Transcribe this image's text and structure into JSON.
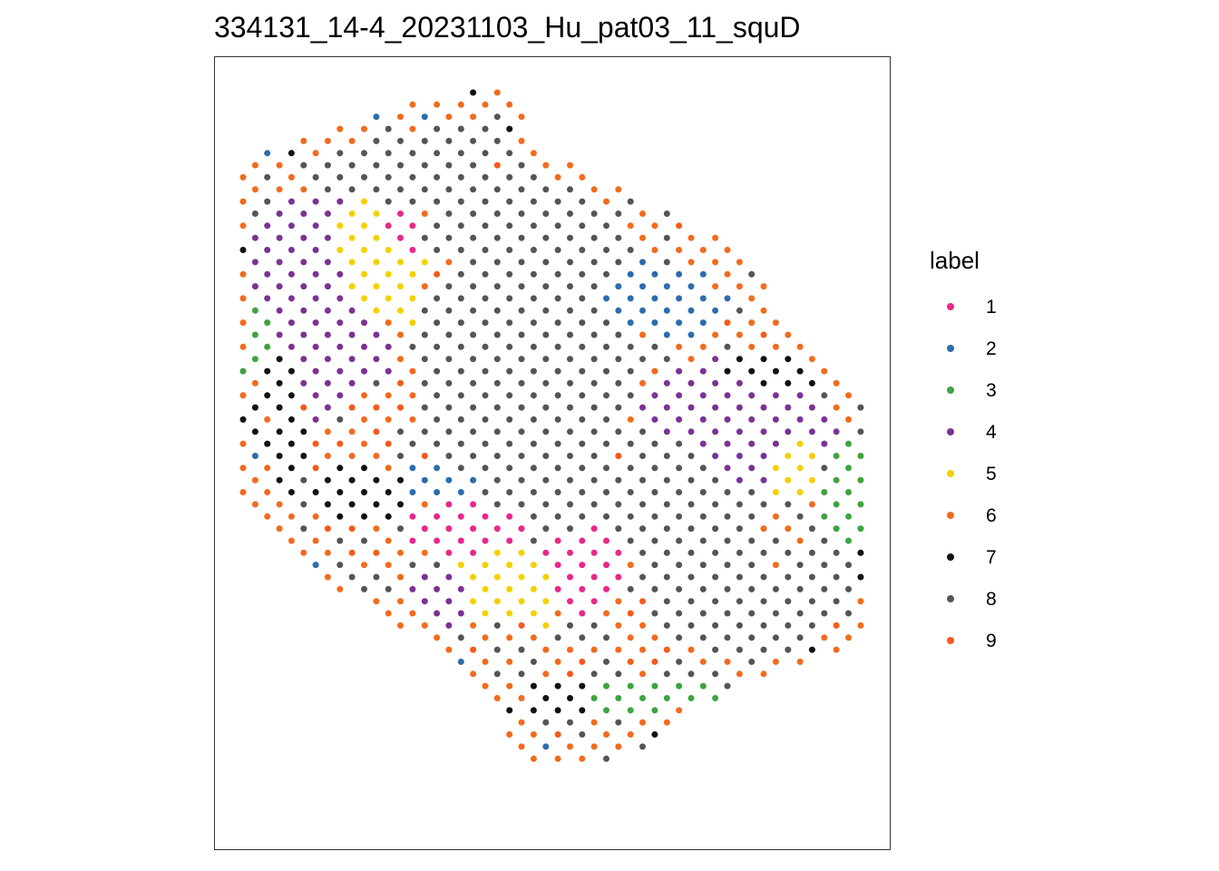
{
  "chart_data": {
    "type": "scatter",
    "title": "334131_14-4_20231103_Hu_pat03_11_squD",
    "xlabel": "",
    "ylabel": "",
    "grid": false,
    "axes_visible": false,
    "legend": {
      "title": "label",
      "placement": "right",
      "entries": [
        {
          "label": "1",
          "color": "#E7298A"
        },
        {
          "label": "2",
          "color": "#2C6DAB"
        },
        {
          "label": "3",
          "color": "#3FA33F"
        },
        {
          "label": "4",
          "color": "#7B3294"
        },
        {
          "label": "5",
          "color": "#F5D000"
        },
        {
          "label": "6",
          "color": "#F26B1D"
        },
        {
          "label": "7",
          "color": "#111111"
        },
        {
          "label": "8",
          "color": "#555555"
        },
        {
          "label": "9",
          "color": "#F55A1A"
        }
      ]
    },
    "spots": {
      "description": "Spatial transcriptomics spots on a hexagonal grid; each spot colored by its cluster label",
      "xlim": [
        0,
        28
      ],
      "ylim": [
        0,
        57
      ],
      "y_reversed": true,
      "grid_step_x": 1,
      "grid_step_y": 1,
      "tissue_outline": [
        [
          9.5,
          0
        ],
        [
          11,
          0
        ],
        [
          12,
          3
        ],
        [
          13,
          5
        ],
        [
          15,
          7
        ],
        [
          17,
          9
        ],
        [
          19,
          11
        ],
        [
          21,
          14
        ],
        [
          22,
          17
        ],
        [
          24,
          21
        ],
        [
          25,
          24
        ],
        [
          26,
          27
        ],
        [
          27,
          30
        ],
        [
          28,
          33
        ],
        [
          28,
          38
        ],
        [
          27,
          43
        ],
        [
          26,
          45
        ],
        [
          24,
          47
        ],
        [
          21,
          49
        ],
        [
          18,
          52
        ],
        [
          16,
          55
        ],
        [
          14,
          56
        ],
        [
          12,
          55
        ],
        [
          11,
          53
        ],
        [
          10,
          50
        ],
        [
          8,
          46
        ],
        [
          5,
          42
        ],
        [
          3,
          40
        ],
        [
          1,
          36
        ],
        [
          0,
          33
        ],
        [
          0,
          26
        ],
        [
          -1,
          22
        ],
        [
          -1,
          10
        ],
        [
          0,
          6
        ],
        [
          2,
          4
        ],
        [
          5,
          2
        ],
        [
          7,
          1
        ]
      ],
      "regions": [
        {
          "label": "1",
          "center": [
            6.5,
            12
          ],
          "radius": [
            1.3,
            3.5
          ]
        },
        {
          "label": "1",
          "center": [
            9.5,
            36
          ],
          "radius": [
            3.5,
            3.5
          ]
        },
        {
          "label": "1",
          "center": [
            14,
            39
          ],
          "radius": [
            2.5,
            4.5
          ]
        },
        {
          "label": "5",
          "center": [
            5,
            14
          ],
          "radius": [
            3.5,
            7
          ]
        },
        {
          "label": "5",
          "center": [
            11,
            40
          ],
          "radius": [
            3.0,
            5
          ]
        },
        {
          "label": "5",
          "center": [
            22.5,
            30
          ],
          "radius": [
            2.0,
            4
          ]
        },
        {
          "label": "4",
          "center": [
            3,
            17
          ],
          "radius": [
            4.0,
            11
          ]
        },
        {
          "label": "4",
          "center": [
            20.5,
            27.5
          ],
          "radius": [
            5.5,
            7
          ]
        },
        {
          "label": "4",
          "center": [
            8,
            42
          ],
          "radius": [
            2.0,
            4
          ]
        },
        {
          "label": "3",
          "center": [
            0.5,
            22
          ],
          "radius": [
            1.5,
            8
          ]
        },
        {
          "label": "3",
          "center": [
            25.5,
            33
          ],
          "radius": [
            2.0,
            5
          ]
        },
        {
          "label": "3",
          "center": [
            16.5,
            50
          ],
          "radius": [
            4.5,
            2
          ]
        },
        {
          "label": "2",
          "center": [
            17,
            17
          ],
          "radius": [
            4.0,
            3.5
          ]
        },
        {
          "label": "2",
          "center": [
            8.5,
            32.5
          ],
          "radius": [
            2.5,
            2
          ]
        },
        {
          "label": "2",
          "center": [
            20,
            28
          ],
          "radius": [
            2.0,
            2
          ]
        },
        {
          "label": "2",
          "center": [
            27.5,
            38
          ],
          "radius": [
            1.0,
            1.5
          ]
        },
        {
          "label": "7",
          "center": [
            1,
            25
          ],
          "radius": [
            2.0,
            11
          ]
        },
        {
          "label": "7",
          "center": [
            5,
            33
          ],
          "radius": [
            2.5,
            3
          ]
        },
        {
          "label": "7",
          "center": [
            22,
            23
          ],
          "radius": [
            3.5,
            2
          ]
        },
        {
          "label": "7",
          "center": [
            26.5,
            39
          ],
          "radius": [
            1.5,
            5
          ]
        },
        {
          "label": "7",
          "center": [
            13,
            50
          ],
          "radius": [
            2.0,
            2
          ]
        },
        {
          "label": "8",
          "center": [
            12,
            22
          ],
          "radius": [
            5.5,
            22
          ]
        },
        {
          "label": "8",
          "center": [
            18,
            34
          ],
          "radius": [
            4.0,
            10
          ]
        },
        {
          "label": "8",
          "center": [
            7,
            6
          ],
          "radius": [
            5.0,
            5
          ]
        },
        {
          "label": "8",
          "center": [
            21,
            43
          ],
          "radius": [
            4.0,
            5
          ]
        }
      ],
      "default_label": "6",
      "secondary_label": "9"
    }
  }
}
